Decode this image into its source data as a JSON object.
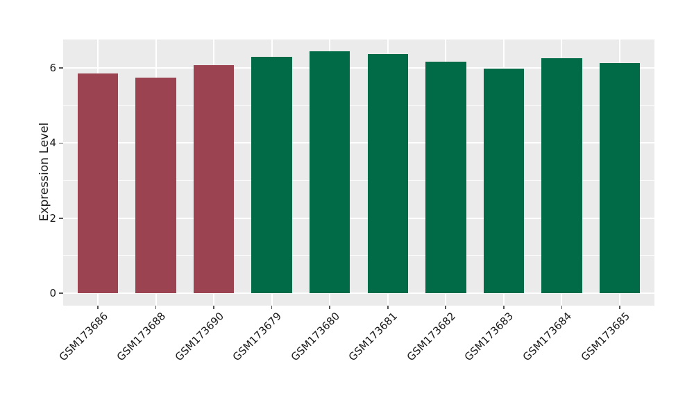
{
  "figure": {
    "background": "#ffffff"
  },
  "chart_data": {
    "type": "bar",
    "title": "",
    "xlabel": "",
    "ylabel": "Expression Level",
    "categories": [
      "GSM173686",
      "GSM173688",
      "GSM173690",
      "GSM173679",
      "GSM173680",
      "GSM173681",
      "GSM173682",
      "GSM173683",
      "GSM173684",
      "GSM173685"
    ],
    "values": [
      5.86,
      5.75,
      6.08,
      6.29,
      6.44,
      6.38,
      6.17,
      5.98,
      6.27,
      6.13
    ],
    "bar_colors": [
      "#9c4351",
      "#9c4351",
      "#9c4351",
      "#006b46",
      "#006b46",
      "#006b46",
      "#006b46",
      "#006b46",
      "#006b46",
      "#006b46"
    ],
    "ylim": [
      -0.33,
      6.76
    ],
    "yticks": [
      0,
      2,
      4,
      6
    ],
    "yticks_minor": [
      1,
      3,
      5
    ],
    "x_tick_rotation": 45,
    "grid": true,
    "legend": false,
    "panel_background": "#ebebeb",
    "grid_color": "#ffffff",
    "tick_color": "#555555",
    "text_color": "#1a1a1a"
  }
}
